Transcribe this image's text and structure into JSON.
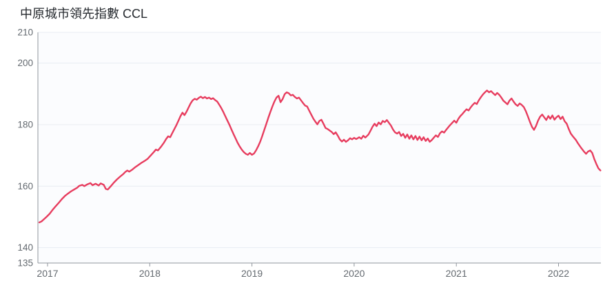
{
  "title": "中原城市領先指數 CCL",
  "chart_data": {
    "type": "line",
    "title": "中原城市領先指數 CCL",
    "xlabel": "",
    "ylabel": "",
    "legend_position": "none",
    "grid": true,
    "xlim": [
      2016.91,
      2022.46
    ],
    "ylim": [
      135,
      210
    ],
    "x_tick_labels": [
      "2017",
      "2018",
      "2019",
      "2020",
      "2021",
      "2022"
    ],
    "x_tick_values": [
      2017,
      2018,
      2019,
      2020,
      2021,
      2022
    ],
    "y_tick_labels": [
      "135",
      "140",
      "160",
      "180",
      "200",
      "210"
    ],
    "y_tick_values": [
      135,
      140,
      160,
      180,
      200,
      210
    ],
    "y_grid_values": [
      140,
      160,
      180,
      200,
      210
    ],
    "colors": {
      "line": "#e73c5e",
      "grid": "#e8ecf3",
      "axis": "#8f959c",
      "tick_label": "#63696f",
      "title": "#25292e",
      "plot_bg": "#fbfcfe"
    },
    "series": [
      {
        "name": "CCL",
        "points": [
          [
            2016.92,
            148.2
          ],
          [
            2016.94,
            148.5
          ],
          [
            2016.96,
            149.1
          ],
          [
            2016.99,
            150.0
          ],
          [
            2017.02,
            151.0
          ],
          [
            2017.05,
            152.3
          ],
          [
            2017.08,
            153.5
          ],
          [
            2017.11,
            154.6
          ],
          [
            2017.14,
            155.8
          ],
          [
            2017.17,
            156.8
          ],
          [
            2017.2,
            157.6
          ],
          [
            2017.23,
            158.3
          ],
          [
            2017.26,
            158.9
          ],
          [
            2017.29,
            159.5
          ],
          [
            2017.31,
            160.1
          ],
          [
            2017.34,
            160.4
          ],
          [
            2017.36,
            160.0
          ],
          [
            2017.39,
            160.6
          ],
          [
            2017.42,
            161.0
          ],
          [
            2017.44,
            160.3
          ],
          [
            2017.47,
            160.8
          ],
          [
            2017.5,
            160.2
          ],
          [
            2017.52,
            160.9
          ],
          [
            2017.55,
            160.4
          ],
          [
            2017.57,
            159.1
          ],
          [
            2017.59,
            158.9
          ],
          [
            2017.62,
            160.0
          ],
          [
            2017.65,
            161.2
          ],
          [
            2017.68,
            162.2
          ],
          [
            2017.71,
            163.1
          ],
          [
            2017.74,
            163.9
          ],
          [
            2017.76,
            164.6
          ],
          [
            2017.78,
            165.1
          ],
          [
            2017.8,
            164.7
          ],
          [
            2017.83,
            165.4
          ],
          [
            2017.86,
            166.2
          ],
          [
            2017.89,
            166.9
          ],
          [
            2017.92,
            167.6
          ],
          [
            2017.95,
            168.2
          ],
          [
            2017.98,
            168.9
          ],
          [
            2018.01,
            170.0
          ],
          [
            2018.04,
            171.1
          ],
          [
            2018.06,
            171.9
          ],
          [
            2018.08,
            171.6
          ],
          [
            2018.11,
            172.8
          ],
          [
            2018.14,
            174.2
          ],
          [
            2018.16,
            175.3
          ],
          [
            2018.18,
            176.2
          ],
          [
            2018.2,
            175.9
          ],
          [
            2018.22,
            177.2
          ],
          [
            2018.24,
            178.5
          ],
          [
            2018.26,
            179.8
          ],
          [
            2018.28,
            181.2
          ],
          [
            2018.3,
            182.7
          ],
          [
            2018.32,
            183.9
          ],
          [
            2018.34,
            183.1
          ],
          [
            2018.36,
            184.2
          ],
          [
            2018.38,
            185.6
          ],
          [
            2018.4,
            186.9
          ],
          [
            2018.42,
            187.9
          ],
          [
            2018.44,
            188.4
          ],
          [
            2018.46,
            188.1
          ],
          [
            2018.48,
            188.7
          ],
          [
            2018.5,
            189.1
          ],
          [
            2018.52,
            188.6
          ],
          [
            2018.54,
            189.0
          ],
          [
            2018.56,
            188.5
          ],
          [
            2018.58,
            188.8
          ],
          [
            2018.6,
            188.3
          ],
          [
            2018.62,
            188.6
          ],
          [
            2018.64,
            188.0
          ],
          [
            2018.66,
            187.5
          ],
          [
            2018.68,
            186.5
          ],
          [
            2018.7,
            185.4
          ],
          [
            2018.72,
            184.1
          ],
          [
            2018.74,
            182.7
          ],
          [
            2018.76,
            181.3
          ],
          [
            2018.78,
            179.9
          ],
          [
            2018.8,
            178.4
          ],
          [
            2018.82,
            176.9
          ],
          [
            2018.84,
            175.5
          ],
          [
            2018.86,
            174.1
          ],
          [
            2018.88,
            172.9
          ],
          [
            2018.9,
            171.9
          ],
          [
            2018.92,
            171.1
          ],
          [
            2018.94,
            170.5
          ],
          [
            2018.96,
            170.2
          ],
          [
            2018.98,
            170.8
          ],
          [
            2019.0,
            170.2
          ],
          [
            2019.02,
            170.6
          ],
          [
            2019.04,
            171.6
          ],
          [
            2019.06,
            172.9
          ],
          [
            2019.08,
            174.4
          ],
          [
            2019.1,
            176.2
          ],
          [
            2019.12,
            178.2
          ],
          [
            2019.14,
            180.2
          ],
          [
            2019.16,
            182.2
          ],
          [
            2019.18,
            184.1
          ],
          [
            2019.2,
            185.9
          ],
          [
            2019.22,
            187.5
          ],
          [
            2019.24,
            188.8
          ],
          [
            2019.26,
            189.4
          ],
          [
            2019.28,
            187.3
          ],
          [
            2019.3,
            188.3
          ],
          [
            2019.32,
            189.9
          ],
          [
            2019.34,
            190.5
          ],
          [
            2019.36,
            190.2
          ],
          [
            2019.38,
            189.5
          ],
          [
            2019.4,
            189.7
          ],
          [
            2019.42,
            189.0
          ],
          [
            2019.44,
            188.5
          ],
          [
            2019.46,
            188.8
          ],
          [
            2019.48,
            187.9
          ],
          [
            2019.5,
            187.0
          ],
          [
            2019.52,
            186.2
          ],
          [
            2019.54,
            185.9
          ],
          [
            2019.56,
            184.6
          ],
          [
            2019.58,
            183.3
          ],
          [
            2019.6,
            182.0
          ],
          [
            2019.62,
            181.0
          ],
          [
            2019.64,
            180.1
          ],
          [
            2019.66,
            181.2
          ],
          [
            2019.68,
            181.6
          ],
          [
            2019.7,
            180.3
          ],
          [
            2019.72,
            178.9
          ],
          [
            2019.74,
            178.6
          ],
          [
            2019.76,
            178.1
          ],
          [
            2019.78,
            177.6
          ],
          [
            2019.8,
            176.9
          ],
          [
            2019.82,
            177.5
          ],
          [
            2019.84,
            176.4
          ],
          [
            2019.86,
            175.2
          ],
          [
            2019.88,
            174.5
          ],
          [
            2019.9,
            175.1
          ],
          [
            2019.92,
            174.4
          ],
          [
            2019.94,
            174.9
          ],
          [
            2019.96,
            175.6
          ],
          [
            2019.98,
            175.2
          ],
          [
            2020.0,
            175.7
          ],
          [
            2020.02,
            175.3
          ],
          [
            2020.05,
            175.9
          ],
          [
            2020.07,
            175.4
          ],
          [
            2020.09,
            176.4
          ],
          [
            2020.11,
            175.8
          ],
          [
            2020.14,
            176.8
          ],
          [
            2020.16,
            178.0
          ],
          [
            2020.18,
            179.3
          ],
          [
            2020.2,
            180.3
          ],
          [
            2020.22,
            179.5
          ],
          [
            2020.24,
            180.7
          ],
          [
            2020.26,
            180.1
          ],
          [
            2020.28,
            181.2
          ],
          [
            2020.3,
            180.8
          ],
          [
            2020.32,
            181.5
          ],
          [
            2020.34,
            180.6
          ],
          [
            2020.36,
            179.7
          ],
          [
            2020.38,
            178.4
          ],
          [
            2020.4,
            177.5
          ],
          [
            2020.42,
            177.1
          ],
          [
            2020.44,
            177.6
          ],
          [
            2020.46,
            176.3
          ],
          [
            2020.48,
            177.0
          ],
          [
            2020.5,
            175.7
          ],
          [
            2020.52,
            176.8
          ],
          [
            2020.54,
            175.4
          ],
          [
            2020.56,
            176.5
          ],
          [
            2020.58,
            175.2
          ],
          [
            2020.6,
            176.3
          ],
          [
            2020.62,
            175.0
          ],
          [
            2020.64,
            176.1
          ],
          [
            2020.66,
            174.9
          ],
          [
            2020.68,
            175.9
          ],
          [
            2020.7,
            174.7
          ],
          [
            2020.72,
            175.5
          ],
          [
            2020.74,
            174.4
          ],
          [
            2020.76,
            175.0
          ],
          [
            2020.78,
            175.8
          ],
          [
            2020.8,
            176.5
          ],
          [
            2020.82,
            176.0
          ],
          [
            2020.84,
            177.2
          ],
          [
            2020.86,
            177.8
          ],
          [
            2020.88,
            177.4
          ],
          [
            2020.9,
            178.3
          ],
          [
            2020.93,
            179.5
          ],
          [
            2020.96,
            180.6
          ],
          [
            2020.98,
            181.3
          ],
          [
            2021.0,
            180.6
          ],
          [
            2021.02,
            181.9
          ],
          [
            2021.04,
            182.8
          ],
          [
            2021.06,
            183.5
          ],
          [
            2021.08,
            184.3
          ],
          [
            2021.1,
            185.0
          ],
          [
            2021.12,
            184.6
          ],
          [
            2021.14,
            185.6
          ],
          [
            2021.16,
            186.4
          ],
          [
            2021.18,
            187.1
          ],
          [
            2021.2,
            186.7
          ],
          [
            2021.22,
            187.9
          ],
          [
            2021.24,
            188.9
          ],
          [
            2021.26,
            189.8
          ],
          [
            2021.28,
            190.5
          ],
          [
            2021.3,
            191.1
          ],
          [
            2021.32,
            190.5
          ],
          [
            2021.34,
            190.9
          ],
          [
            2021.36,
            190.2
          ],
          [
            2021.38,
            189.6
          ],
          [
            2021.4,
            190.3
          ],
          [
            2021.42,
            189.7
          ],
          [
            2021.44,
            188.8
          ],
          [
            2021.46,
            187.8
          ],
          [
            2021.48,
            187.2
          ],
          [
            2021.5,
            186.6
          ],
          [
            2021.52,
            187.8
          ],
          [
            2021.54,
            188.5
          ],
          [
            2021.56,
            187.5
          ],
          [
            2021.58,
            186.6
          ],
          [
            2021.6,
            186.1
          ],
          [
            2021.62,
            186.9
          ],
          [
            2021.64,
            186.4
          ],
          [
            2021.66,
            185.7
          ],
          [
            2021.68,
            184.4
          ],
          [
            2021.7,
            182.7
          ],
          [
            2021.72,
            180.9
          ],
          [
            2021.74,
            179.3
          ],
          [
            2021.76,
            178.3
          ],
          [
            2021.78,
            179.6
          ],
          [
            2021.8,
            181.3
          ],
          [
            2021.82,
            182.6
          ],
          [
            2021.84,
            183.3
          ],
          [
            2021.86,
            182.4
          ],
          [
            2021.88,
            181.5
          ],
          [
            2021.9,
            182.8
          ],
          [
            2021.92,
            181.9
          ],
          [
            2021.94,
            183.0
          ],
          [
            2021.96,
            181.6
          ],
          [
            2021.98,
            182.4
          ],
          [
            2022.0,
            182.9
          ],
          [
            2022.02,
            181.8
          ],
          [
            2022.04,
            182.6
          ],
          [
            2022.06,
            181.1
          ],
          [
            2022.08,
            180.3
          ],
          [
            2022.1,
            178.6
          ],
          [
            2022.12,
            177.1
          ],
          [
            2022.14,
            176.2
          ],
          [
            2022.17,
            175.0
          ],
          [
            2022.19,
            173.9
          ],
          [
            2022.22,
            172.5
          ],
          [
            2022.25,
            171.2
          ],
          [
            2022.27,
            170.5
          ],
          [
            2022.29,
            171.3
          ],
          [
            2022.31,
            171.6
          ],
          [
            2022.33,
            170.8
          ],
          [
            2022.35,
            168.8
          ],
          [
            2022.37,
            167.2
          ],
          [
            2022.39,
            165.8
          ],
          [
            2022.41,
            165.1
          ]
        ]
      }
    ]
  }
}
